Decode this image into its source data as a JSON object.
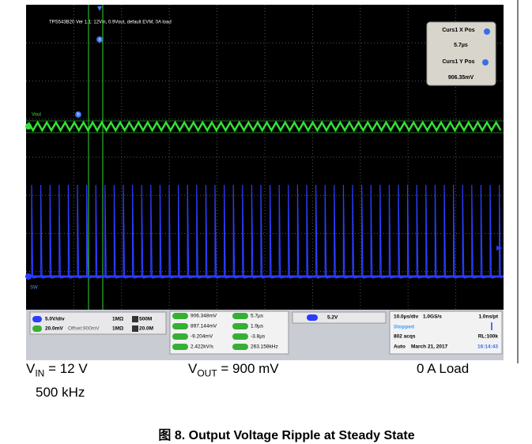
{
  "scope": {
    "header": "TPS543B20 Ver 1.1: 12Vin, 0.9Vout, default EVM, 0A load",
    "cursor_a": "a",
    "cursor_b": "b",
    "cursor_box": {
      "x_label": "Curs1 X Pos",
      "x_value": "5.7µs",
      "y_label": "Curs1 Y Pos",
      "y_value": "906.35mV"
    },
    "channel_labels": {
      "vout": "Vout",
      "sw": "SW"
    },
    "channels": [
      {
        "scale": "5.0V/div",
        "impedance": "1MΩ",
        "bandwidth": "500M"
      },
      {
        "scale": "20.0mV",
        "offset": "Offset:900mV",
        "impedance": "1MΩ",
        "bandwidth": "20.0M"
      }
    ],
    "measurements": {
      "left": [
        "906.348mV",
        "897.144mV",
        "-9.204mV",
        "2.422kV/s"
      ],
      "right": [
        "5.7µs",
        "1.9µs",
        "-3.8µs",
        "263.158kHz"
      ]
    },
    "trigger": "5.2V",
    "timebase": {
      "scale": "10.0µs/div",
      "rate": "1.0GS/s",
      "resolution": "1.0ns/pt",
      "status": "Stopped",
      "acqs": "802 acqs",
      "record": "RL:100k",
      "mode": "Auto",
      "date": "March 21, 2017",
      "time": "16:14:43"
    }
  },
  "caption": {
    "vin": {
      "v": "V",
      "sub": "IN",
      "rest": " = 12 V"
    },
    "freq": "500 kHz",
    "vout": {
      "v": "V",
      "sub": "OUT",
      "rest": " = 900 mV"
    },
    "load": "0 A Load",
    "figure": "图 8. Output Voltage Ripple at Steady State"
  }
}
